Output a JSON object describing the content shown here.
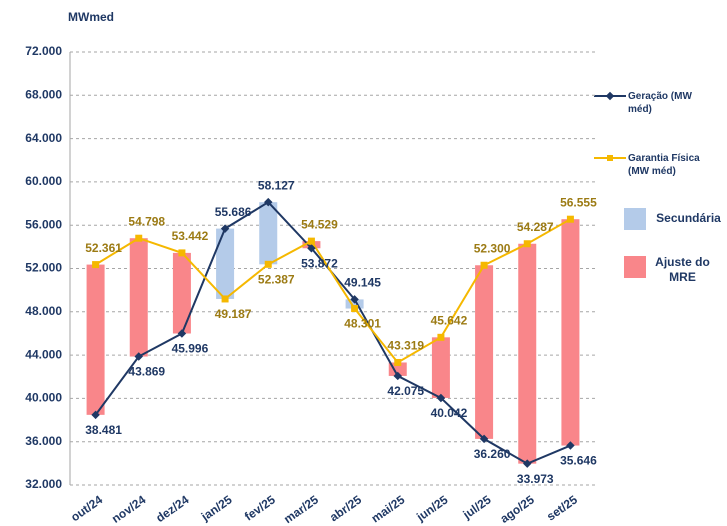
{
  "chart_data": {
    "type": "line",
    "y_label": "MWmed",
    "categories": [
      "out/24",
      "nov/24",
      "dez/24",
      "jan/25",
      "fev/25",
      "mar/25",
      "abr/25",
      "mai/25",
      "jun/25",
      "jul/25",
      "ago/25",
      "set/25"
    ],
    "series": [
      {
        "name": "Geração (MW méd)",
        "color": "#1f3864",
        "values": [
          38481,
          43869,
          45996,
          55686,
          58127,
          53872,
          49145,
          42075,
          40042,
          36260,
          33973,
          35646
        ],
        "value_labels": [
          "38.481",
          "43.869",
          "45.996",
          "55.686",
          "58.127",
          "53.872",
          "49.145",
          "42.075",
          "40.042",
          "36.260",
          "33.973",
          "35.646"
        ]
      },
      {
        "name": "Garantia Física (MW méd)",
        "color": "#f5b800",
        "values": [
          52361,
          54798,
          53442,
          49187,
          52387,
          54529,
          48301,
          43319,
          45642,
          52300,
          54287,
          56555
        ],
        "value_labels": [
          "52.361",
          "54.798",
          "53.442",
          "49.187",
          "52.387",
          "54.529",
          "48.301",
          "43.319",
          "45.642",
          "52.300",
          "54.287",
          "56.555"
        ]
      }
    ],
    "fill_legend": [
      {
        "name": "Secundária",
        "color": "#b4cbe9"
      },
      {
        "name": "Ajuste do MRE",
        "color": "#f9868a"
      }
    ],
    "ylim": [
      32000,
      72000
    ],
    "yticks": [
      {
        "value": 32000,
        "label": "32.000"
      },
      {
        "value": 36000,
        "label": "36.000"
      },
      {
        "value": 40000,
        "label": "40.000"
      },
      {
        "value": 44000,
        "label": "44.000"
      },
      {
        "value": 48000,
        "label": "48.000"
      },
      {
        "value": 52000,
        "label": "52.000"
      },
      {
        "value": 56000,
        "label": "56.000"
      },
      {
        "value": 60000,
        "label": "60.000"
      },
      {
        "value": 64000,
        "label": "64.000"
      },
      {
        "value": 68000,
        "label": "68.000"
      },
      {
        "value": 72000,
        "label": "72.000"
      }
    ],
    "grid": true
  }
}
